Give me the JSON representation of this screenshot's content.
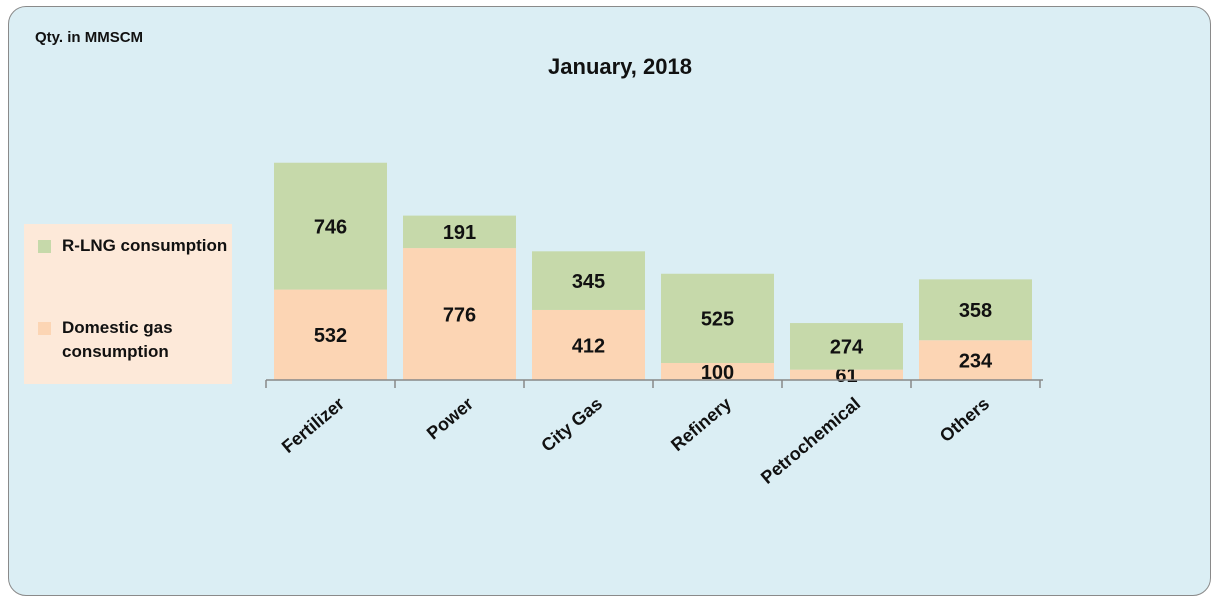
{
  "chart_data": {
    "type": "bar",
    "stacked": true,
    "title": "January, 2018",
    "y_label": "Qty. in MMSCM",
    "categories": [
      "Fertilizer",
      "Power",
      "City Gas",
      "Refinery",
      "Petrochemical",
      "Others"
    ],
    "series": [
      {
        "name": "Domestic gas consumption",
        "color": "#fcd5b4",
        "values": [
          532,
          776,
          412,
          100,
          61,
          234
        ]
      },
      {
        "name": "R-LNG consumption",
        "color": "#c6d9aa",
        "values": [
          746,
          191,
          345,
          525,
          274,
          358
        ]
      }
    ],
    "ylim": [
      0,
      1400
    ],
    "legend": "left"
  }
}
